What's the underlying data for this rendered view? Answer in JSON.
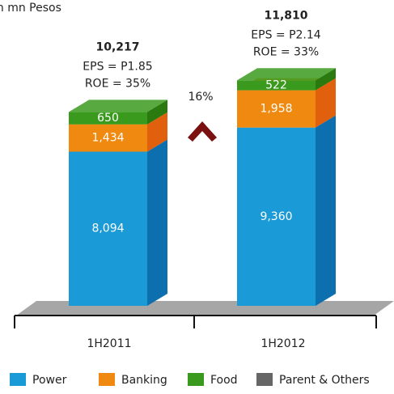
{
  "chart_data": {
    "type": "stacked-bar-3d",
    "title": "in mn Pesos",
    "categories": [
      "1H2011",
      "1H2012"
    ],
    "series": [
      {
        "name": "Power",
        "color": "#1a9ad6",
        "side": "#0e6fae",
        "values": [
          8094,
          9360
        ],
        "value_labels": [
          "8,094",
          "9,360"
        ]
      },
      {
        "name": "Banking",
        "color": "#f0890f",
        "side": "#e0600e",
        "values": [
          1434,
          1958
        ],
        "value_labels": [
          "1,434",
          "1,958"
        ]
      },
      {
        "name": "Food",
        "color": "#3a9a1e",
        "side": "#2a7a10",
        "values": [
          650,
          522
        ]
      },
      {
        "name": "Parent & Others",
        "color": "#666666",
        "side": "#444444",
        "values": [
          null,
          null
        ]
      }
    ],
    "totals": [
      10217,
      11810
    ],
    "total_labels": [
      "10,217",
      "11,810"
    ],
    "eps": [
      "EPS = P1.85",
      "EPS = P2.14"
    ],
    "roe": [
      "ROE = 35%",
      "ROE = 33%"
    ],
    "growth": "16%",
    "ylim": [
      0,
      11810
    ]
  }
}
